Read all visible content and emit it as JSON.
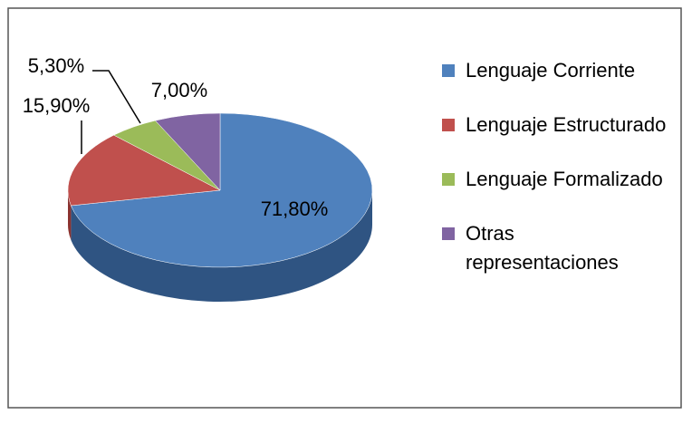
{
  "chart_data": {
    "type": "pie",
    "categories": [
      "Lenguaje Corriente",
      "Lenguaje Estructurado",
      "Lenguaje Formalizado",
      "Otras representaciones"
    ],
    "values": [
      71.8,
      15.9,
      5.3,
      7.0
    ],
    "value_labels": [
      "71,80%",
      "15,90%",
      "5,30%",
      "7,00%"
    ],
    "colors": [
      "#4f81bd",
      "#c0504d",
      "#9bbb59",
      "#8064a2"
    ],
    "side_colors": [
      "#2f5482",
      "#8a3330",
      "#6f8a3a",
      "#5a4477"
    ],
    "legend": "right"
  }
}
